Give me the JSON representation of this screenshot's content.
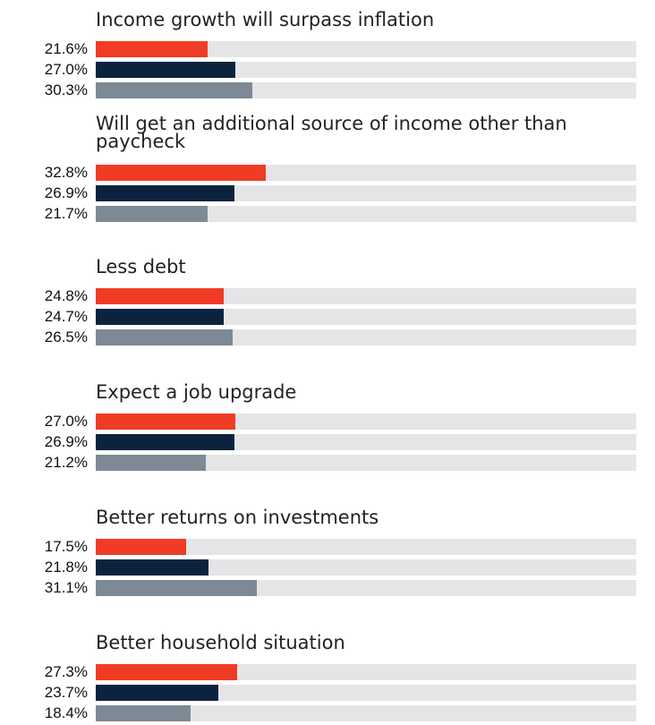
{
  "chart_data": {
    "type": "bar",
    "orientation": "horizontal",
    "xlim": [
      0,
      100
    ],
    "grid": false,
    "colors": [
      "#f03c24",
      "#0c2340",
      "#7d8a96"
    ],
    "track_color": "#e5e5e7",
    "groups": [
      {
        "title": "Income growth will surpass inflation",
        "values": [
          21.6,
          27.0,
          30.3
        ],
        "labels": [
          "21.6%",
          "27.0%",
          "30.3%"
        ]
      },
      {
        "title": "Will get an additional source of income other than paycheck",
        "values": [
          32.8,
          26.9,
          21.7
        ],
        "labels": [
          "32.8%",
          "26.9%",
          "21.7%"
        ]
      },
      {
        "title": "Less debt",
        "values": [
          24.8,
          24.7,
          26.5
        ],
        "labels": [
          "24.8%",
          "24.7%",
          "26.5%"
        ]
      },
      {
        "title": "Expect a job upgrade",
        "values": [
          27.0,
          26.9,
          21.2
        ],
        "labels": [
          "27.0%",
          "26.9%",
          "21.2%"
        ]
      },
      {
        "title": "Better returns on investments",
        "values": [
          17.5,
          21.8,
          31.1
        ],
        "labels": [
          "17.5%",
          "21.8%",
          "31.1%"
        ]
      },
      {
        "title": "Better household situation",
        "values": [
          27.3,
          23.7,
          18.4
        ],
        "labels": [
          "27.3%",
          "23.7%",
          "18.4%"
        ]
      }
    ]
  }
}
